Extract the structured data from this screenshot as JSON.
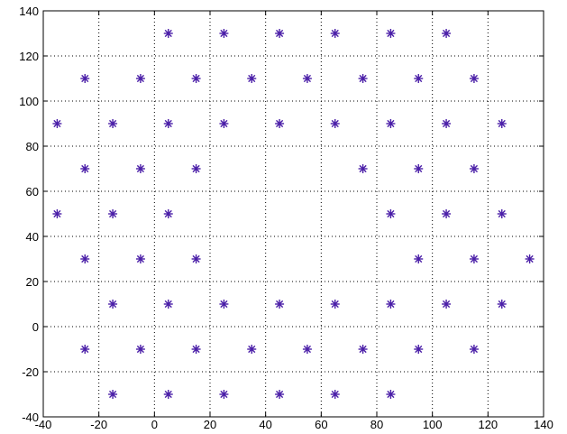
{
  "chart_data": {
    "type": "scatter",
    "title": "",
    "xlabel": "",
    "ylabel": "",
    "xlim": [
      -40,
      140
    ],
    "ylim": [
      -40,
      140
    ],
    "x_ticks": [
      -40,
      -20,
      0,
      20,
      40,
      60,
      80,
      100,
      120,
      140
    ],
    "y_ticks": [
      -40,
      -20,
      0,
      20,
      40,
      60,
      80,
      100,
      120,
      140
    ],
    "x_tick_labels": [
      "-40",
      "-20",
      "0",
      "20",
      "40",
      "60",
      "80",
      "100",
      "120",
      "140"
    ],
    "y_tick_labels": [
      "-40",
      "-20",
      "0",
      "20",
      "40",
      "60",
      "80",
      "100",
      "120",
      "140"
    ],
    "grid": true,
    "grid_style": "dotted",
    "marker": "*",
    "marker_color": "#4b1fa8",
    "series": [
      {
        "points": [
          [
            5,
            130
          ],
          [
            25,
            130
          ],
          [
            45,
            130
          ],
          [
            65,
            130
          ],
          [
            85,
            130
          ],
          [
            105,
            130
          ],
          [
            -25,
            110
          ],
          [
            -5,
            110
          ],
          [
            15,
            110
          ],
          [
            35,
            110
          ],
          [
            55,
            110
          ],
          [
            75,
            110
          ],
          [
            95,
            110
          ],
          [
            115,
            110
          ],
          [
            -35,
            90
          ],
          [
            -15,
            90
          ],
          [
            5,
            90
          ],
          [
            25,
            90
          ],
          [
            45,
            90
          ],
          [
            65,
            90
          ],
          [
            85,
            90
          ],
          [
            105,
            90
          ],
          [
            125,
            90
          ],
          [
            -25,
            70
          ],
          [
            -5,
            70
          ],
          [
            15,
            70
          ],
          [
            75,
            70
          ],
          [
            95,
            70
          ],
          [
            115,
            70
          ],
          [
            -35,
            50
          ],
          [
            -15,
            50
          ],
          [
            5,
            50
          ],
          [
            85,
            50
          ],
          [
            105,
            50
          ],
          [
            125,
            50
          ],
          [
            -25,
            30
          ],
          [
            -5,
            30
          ],
          [
            15,
            30
          ],
          [
            95,
            30
          ],
          [
            115,
            30
          ],
          [
            135,
            30
          ],
          [
            -15,
            10
          ],
          [
            5,
            10
          ],
          [
            25,
            10
          ],
          [
            45,
            10
          ],
          [
            65,
            10
          ],
          [
            85,
            10
          ],
          [
            105,
            10
          ],
          [
            125,
            10
          ],
          [
            -25,
            -10
          ],
          [
            -5,
            -10
          ],
          [
            15,
            -10
          ],
          [
            35,
            -10
          ],
          [
            55,
            -10
          ],
          [
            75,
            -10
          ],
          [
            95,
            -10
          ],
          [
            115,
            -10
          ],
          [
            -15,
            -30
          ],
          [
            5,
            -30
          ],
          [
            25,
            -30
          ],
          [
            45,
            -30
          ],
          [
            65,
            -30
          ],
          [
            85,
            -30
          ]
        ]
      }
    ]
  }
}
